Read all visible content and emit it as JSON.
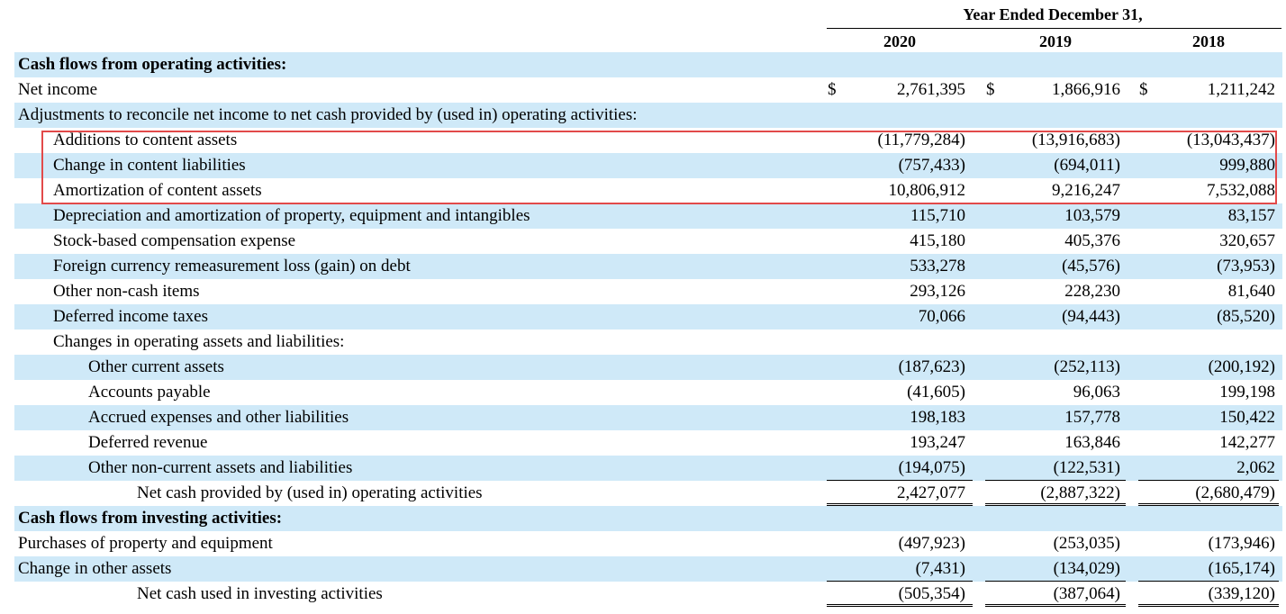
{
  "header": {
    "title": "Year Ended December 31,",
    "years": [
      "2020",
      "2019",
      "2018"
    ]
  },
  "rows": [
    {
      "label": "Cash flows from operating activities:",
      "bold": true,
      "indent": 0,
      "shade": true,
      "values": [
        "",
        "",
        ""
      ]
    },
    {
      "label": "Net income",
      "indent": 0,
      "shade": false,
      "currency": "$",
      "values": [
        "2,761,395",
        "1,866,916",
        "1,211,242"
      ]
    },
    {
      "label": "Adjustments to reconcile net income to net cash provided by (used in) operating activities:",
      "indent": 0,
      "shade": true,
      "values": [
        "",
        "",
        ""
      ]
    },
    {
      "label": "Additions to content assets",
      "indent": 1,
      "shade": false,
      "values": [
        "(11,779,284)",
        "(13,916,683)",
        "(13,043,437)"
      ]
    },
    {
      "label": "Change in content liabilities",
      "indent": 1,
      "shade": true,
      "values": [
        "(757,433)",
        "(694,011)",
        "999,880"
      ]
    },
    {
      "label": "Amortization of content assets",
      "indent": 1,
      "shade": false,
      "values": [
        "10,806,912",
        "9,216,247",
        "7,532,088"
      ]
    },
    {
      "label": "Depreciation and amortization of property, equipment and intangibles",
      "indent": 1,
      "shade": true,
      "values": [
        "115,710",
        "103,579",
        "83,157"
      ]
    },
    {
      "label": "Stock-based compensation expense",
      "indent": 1,
      "shade": false,
      "values": [
        "415,180",
        "405,376",
        "320,657"
      ]
    },
    {
      "label": "Foreign currency remeasurement loss (gain) on debt",
      "indent": 1,
      "shade": true,
      "values": [
        "533,278",
        "(45,576)",
        "(73,953)"
      ]
    },
    {
      "label": "Other non-cash items",
      "indent": 1,
      "shade": false,
      "values": [
        "293,126",
        "228,230",
        "81,640"
      ]
    },
    {
      "label": "Deferred income taxes",
      "indent": 1,
      "shade": true,
      "values": [
        "70,066",
        "(94,443)",
        "(85,520)"
      ]
    },
    {
      "label": "Changes in operating assets and liabilities:",
      "indent": 1,
      "shade": false,
      "values": [
        "",
        "",
        ""
      ]
    },
    {
      "label": "Other current assets",
      "indent": 2,
      "shade": true,
      "values": [
        "(187,623)",
        "(252,113)",
        "(200,192)"
      ]
    },
    {
      "label": "Accounts payable",
      "indent": 2,
      "shade": false,
      "values": [
        "(41,605)",
        "96,063",
        "199,198"
      ]
    },
    {
      "label": "Accrued expenses and other liabilities",
      "indent": 2,
      "shade": true,
      "values": [
        "198,183",
        "157,778",
        "150,422"
      ]
    },
    {
      "label": "Deferred revenue",
      "indent": 2,
      "shade": false,
      "values": [
        "193,247",
        "163,846",
        "142,277"
      ]
    },
    {
      "label": "Other non-current assets and liabilities",
      "indent": 2,
      "shade": true,
      "values": [
        "(194,075)",
        "(122,531)",
        "2,062"
      ],
      "underline": true
    },
    {
      "label": "Net cash provided by (used in) operating activities",
      "indent": 3,
      "shade": false,
      "values": [
        "2,427,077",
        "(2,887,322)",
        "(2,680,479)"
      ],
      "double": true
    },
    {
      "label": "Cash flows from investing activities:",
      "bold": true,
      "indent": 0,
      "shade": true,
      "values": [
        "",
        "",
        ""
      ]
    },
    {
      "label": "Purchases of property and equipment",
      "indent": 0,
      "shade": false,
      "values": [
        "(497,923)",
        "(253,035)",
        "(173,946)"
      ]
    },
    {
      "label": "Change in other assets",
      "indent": 0,
      "shade": true,
      "values": [
        "(7,431)",
        "(134,029)",
        "(165,174)"
      ],
      "underline": true
    },
    {
      "label": "Net cash used in investing activities",
      "indent": 3,
      "shade": false,
      "values": [
        "(505,354)",
        "(387,064)",
        "(339,120)"
      ],
      "double": true
    }
  ]
}
